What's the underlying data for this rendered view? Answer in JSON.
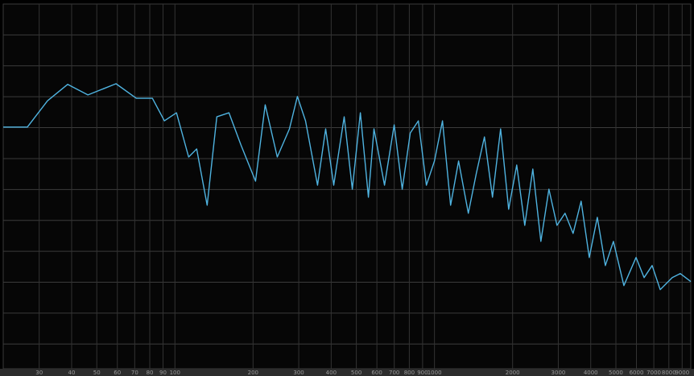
{
  "chart_data": {
    "type": "line",
    "log_x": true,
    "grid": true,
    "x": [
      21.8,
      27.0,
      32.3,
      38.6,
      46.2,
      59.3,
      71.0,
      81.9,
      91.1,
      101.4,
      112.9,
      121.3,
      133.1,
      145.0,
      161.5,
      179.7,
      204.5,
      222.7,
      248.0,
      276.1,
      296.5,
      318.5,
      354.5,
      380.8,
      409.0,
      449.0,
      482.3,
      518.1,
      556.4,
      584.8,
      642.0,
      699.4,
      751.2,
      806.8,
      866.7,
      930.8,
      1000,
      1074,
      1154,
      1239,
      1350,
      1450,
      1558,
      1673,
      1798,
      1931,
      2074,
      2228,
      2393,
      2570,
      2761,
      2965,
      3185,
      3421,
      3674,
      3947,
      4240,
      4554,
      4891,
      5369,
      5977,
      6420,
      6895,
      7405,
      8245,
      8857,
      9717
    ],
    "series": [
      {
        "color": "#4fb3e0",
        "values": [
          -39.8,
          -39.8,
          -31.3,
          -26.0,
          -29.4,
          -25.8,
          -30.5,
          -30.5,
          -37.8,
          -35.2,
          -49.5,
          -46.9,
          -65.1,
          -36.5,
          -35.2,
          -45.6,
          -57.3,
          -32.6,
          -49.5,
          -40.4,
          -29.9,
          -37.8,
          -58.6,
          -40.4,
          -58.6,
          -36.5,
          -59.9,
          -35.2,
          -62.5,
          -40.4,
          -58.6,
          -39.1,
          -59.9,
          -41.7,
          -37.8,
          -58.6,
          -50.8,
          -37.8,
          -65.1,
          -50.8,
          -67.7,
          -54.7,
          -43.0,
          -62.5,
          -40.4,
          -66.4,
          -52.1,
          -71.6,
          -53.4,
          -76.8,
          -59.9,
          -71.6,
          -67.7,
          -74.2,
          -63.8,
          -82.0,
          -69.0,
          -84.6,
          -76.8,
          -91.1,
          -82.0,
          -88.5,
          -84.6,
          -92.4,
          -88.5,
          -87.2,
          -89.8
        ]
      }
    ],
    "xlim": [
      21.8,
      9717
    ],
    "ylim": [
      -118,
      0
    ],
    "xticks": [
      30,
      40,
      50,
      60,
      70,
      80,
      90,
      100,
      200,
      300,
      400,
      500,
      600,
      700,
      800,
      900,
      1000,
      2000,
      3000,
      4000,
      5000,
      6000,
      7000,
      8000,
      9000
    ],
    "yticks": [
      -110,
      -100,
      -90,
      -80,
      -70,
      -60,
      -50,
      -40,
      -30,
      -20,
      -10
    ]
  }
}
